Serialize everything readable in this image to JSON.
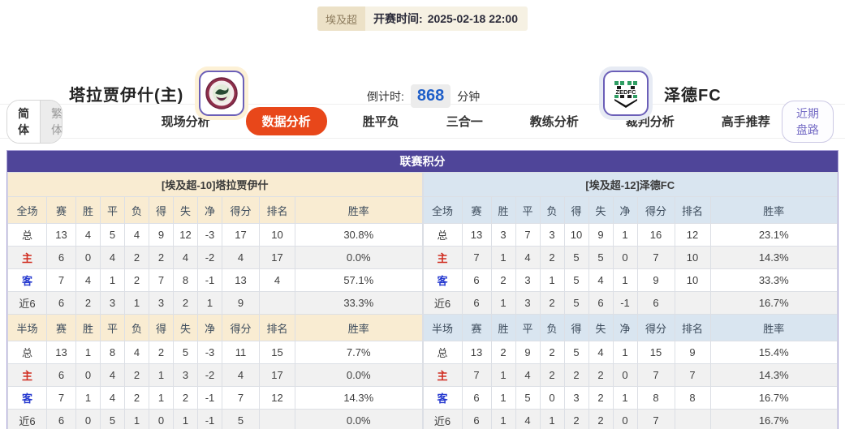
{
  "header": {
    "league_badge": "埃及超",
    "kickoff_label": "开赛时间:",
    "kickoff_time": "2025-02-18 22:00",
    "home_team": "塔拉贾伊什(主)",
    "away_team": "泽德FC",
    "away_logo_text": "ZEDFC",
    "countdown_label": "倒计时:",
    "countdown_value": "868",
    "countdown_unit": "分钟"
  },
  "lang_toggle": {
    "simplified": "简体",
    "traditional": "繁体"
  },
  "tabs": [
    {
      "label": "现场分析",
      "active": false
    },
    {
      "label": "数据分析",
      "active": true
    },
    {
      "label": "胜平负",
      "active": false
    },
    {
      "label": "三合一",
      "active": false
    },
    {
      "label": "教练分析",
      "active": false
    },
    {
      "label": "裁判分析",
      "active": false
    },
    {
      "label": "高手推荐",
      "active": false
    }
  ],
  "recent_button": "近期盘路",
  "colors": {
    "accent_purple": "#4f4599",
    "active_tab_red": "#e8471a",
    "home_row_red": "#d02c20",
    "away_row_blue": "#2438cf",
    "left_header_beige": "#f9ecd2",
    "right_header_blue": "#d9e5f0",
    "countdown_blue": "#1f5fc9"
  },
  "table": {
    "title": "联赛积分",
    "columns_full": [
      "全场",
      "赛",
      "胜",
      "平",
      "负",
      "得",
      "失",
      "净",
      "得分",
      "排名",
      "胜率"
    ],
    "columns_half": [
      "半场",
      "赛",
      "胜",
      "平",
      "负",
      "得",
      "失",
      "净",
      "得分",
      "排名",
      "胜率"
    ],
    "left": {
      "team_header": "[埃及超-10]塔拉贾伊什",
      "full_rows": [
        [
          "总",
          "13",
          "4",
          "5",
          "4",
          "9",
          "12",
          "-3",
          "17",
          "10",
          "30.8%"
        ],
        [
          "主",
          "6",
          "0",
          "4",
          "2",
          "2",
          "4",
          "-2",
          "4",
          "17",
          "0.0%"
        ],
        [
          "客",
          "7",
          "4",
          "1",
          "2",
          "7",
          "8",
          "-1",
          "13",
          "4",
          "57.1%"
        ],
        [
          "近6",
          "6",
          "2",
          "3",
          "1",
          "3",
          "2",
          "1",
          "9",
          "",
          "33.3%"
        ]
      ],
      "half_rows": [
        [
          "总",
          "13",
          "1",
          "8",
          "4",
          "2",
          "5",
          "-3",
          "11",
          "15",
          "7.7%"
        ],
        [
          "主",
          "6",
          "0",
          "4",
          "2",
          "1",
          "3",
          "-2",
          "4",
          "17",
          "0.0%"
        ],
        [
          "客",
          "7",
          "1",
          "4",
          "2",
          "1",
          "2",
          "-1",
          "7",
          "12",
          "14.3%"
        ],
        [
          "近6",
          "6",
          "0",
          "5",
          "1",
          "0",
          "1",
          "-1",
          "5",
          "",
          "0.0%"
        ]
      ]
    },
    "right": {
      "team_header": "[埃及超-12]泽德FC",
      "full_rows": [
        [
          "总",
          "13",
          "3",
          "7",
          "3",
          "10",
          "9",
          "1",
          "16",
          "12",
          "23.1%"
        ],
        [
          "主",
          "7",
          "1",
          "4",
          "2",
          "5",
          "5",
          "0",
          "7",
          "10",
          "14.3%"
        ],
        [
          "客",
          "6",
          "2",
          "3",
          "1",
          "5",
          "4",
          "1",
          "9",
          "10",
          "33.3%"
        ],
        [
          "近6",
          "6",
          "1",
          "3",
          "2",
          "5",
          "6",
          "-1",
          "6",
          "",
          "16.7%"
        ]
      ],
      "half_rows": [
        [
          "总",
          "13",
          "2",
          "9",
          "2",
          "5",
          "4",
          "1",
          "15",
          "9",
          "15.4%"
        ],
        [
          "主",
          "7",
          "1",
          "4",
          "2",
          "2",
          "2",
          "0",
          "7",
          "7",
          "14.3%"
        ],
        [
          "客",
          "6",
          "1",
          "5",
          "0",
          "3",
          "2",
          "1",
          "8",
          "8",
          "16.7%"
        ],
        [
          "近6",
          "6",
          "1",
          "4",
          "1",
          "2",
          "2",
          "0",
          "7",
          "",
          "16.7%"
        ]
      ]
    }
  }
}
